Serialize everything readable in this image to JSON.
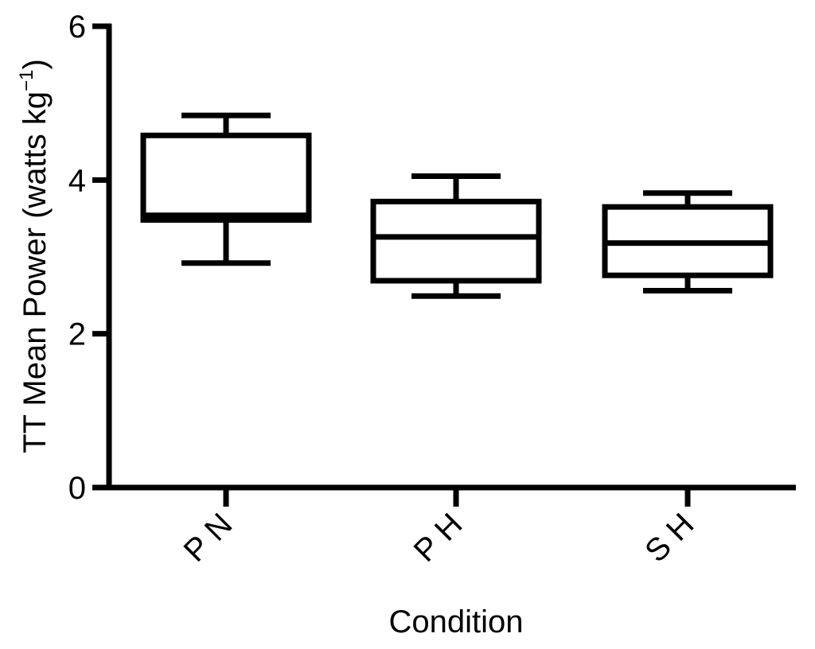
{
  "chart_data": {
    "type": "box",
    "xlabel": "Condition",
    "ylabel_main": "TT Mean Power (watts kg",
    "ylabel_sup": "−1",
    "ylabel_end": ")",
    "ylim": [
      0,
      6
    ],
    "yticks": [
      0,
      2,
      4,
      6
    ],
    "grid": false,
    "categories": [
      "P N",
      "P H",
      "S H"
    ],
    "boxes": [
      {
        "category": "P N",
        "whisker_low": 2.92,
        "q1": 3.48,
        "median": 3.54,
        "q3": 4.58,
        "whisker_high": 4.84
      },
      {
        "category": "P H",
        "whisker_low": 2.49,
        "q1": 2.69,
        "median": 3.26,
        "q3": 3.72,
        "whisker_high": 4.05
      },
      {
        "category": "S H",
        "whisker_low": 2.56,
        "q1": 2.76,
        "median": 3.18,
        "q3": 3.65,
        "whisker_high": 3.83
      }
    ]
  }
}
